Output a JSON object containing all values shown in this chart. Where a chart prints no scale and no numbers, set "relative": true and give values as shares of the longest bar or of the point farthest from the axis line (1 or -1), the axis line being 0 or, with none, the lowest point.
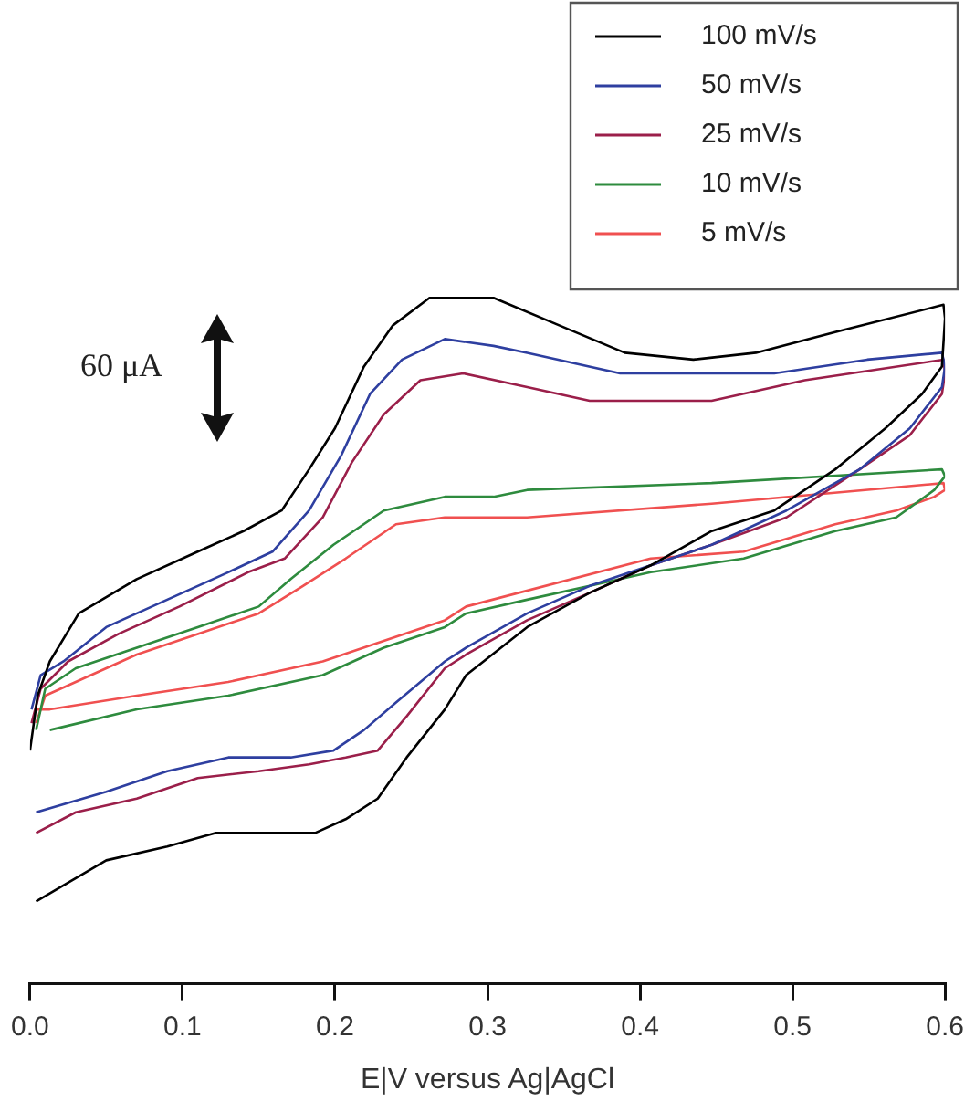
{
  "chart_data": {
    "type": "line",
    "relative": true,
    "xlabel": "E|V versus Ag|AgCl",
    "xlim": [
      0,
      0.6
    ],
    "xticks": [
      {
        "value": 0,
        "label": "0.0"
      },
      {
        "value": 0.1,
        "label": "0.1"
      },
      {
        "value": 0.2,
        "label": "0.2"
      },
      {
        "value": 0.3,
        "label": "0.3"
      },
      {
        "value": 0.4,
        "label": "0.4"
      },
      {
        "value": 0.5,
        "label": "0.5"
      },
      {
        "value": 0.6,
        "label": "0.6"
      }
    ],
    "tick_labels": "x",
    "grid": false,
    "legend": "top right",
    "marker": "none",
    "line_style": "solid",
    "annotations": [
      "60 μA"
    ],
    "series": [
      {
        "name": "100 mV/s",
        "color": "#000000",
        "x": [
          0,
          0.005,
          0.013,
          0.032,
          0.07,
          0.11,
          0.14,
          0.165,
          0.183,
          0.2,
          0.219,
          0.238,
          0.262,
          0.284,
          0.304,
          0.347,
          0.39,
          0.435,
          0.476,
          0.528,
          0.599,
          0.6,
          0.598,
          0.585,
          0.561,
          0.528,
          0.488,
          0.447,
          0.407,
          0.367,
          0.326,
          0.286,
          0.272,
          0.247,
          0.228,
          0.207,
          0.187,
          0.167,
          0.143,
          0.122,
          0.09,
          0.05,
          0.004
        ],
        "values": [
          0.34,
          0.42,
          0.47,
          0.54,
          0.59,
          0.63,
          0.66,
          0.69,
          0.75,
          0.81,
          0.9,
          0.96,
          1.0,
          1,
          1.0,
          0.96,
          0.92,
          0.91,
          0.92,
          0.95,
          0.99,
          0.97,
          0.9,
          0.86,
          0.81,
          0.75,
          0.69,
          0.66,
          0.61,
          0.57,
          0.52,
          0.45,
          0.4,
          0.33,
          0.27,
          0.24,
          0.22,
          0.22,
          0.22,
          0.22,
          0.2,
          0.18,
          0.12
        ]
      },
      {
        "name": "50 mV/s",
        "color": "#2e3fa0",
        "x": [
          0.001,
          0.007,
          0.022,
          0.05,
          0.09,
          0.13,
          0.159,
          0.183,
          0.204,
          0.223,
          0.244,
          0.272,
          0.304,
          0.326,
          0.387,
          0.435,
          0.488,
          0.549,
          0.598,
          0.6,
          0.598,
          0.577,
          0.544,
          0.496,
          0.447,
          0.407,
          0.367,
          0.326,
          0.286,
          0.272,
          0.24,
          0.219,
          0.199,
          0.171,
          0.13,
          0.09,
          0.05,
          0.004
        ],
        "values": [
          0.4,
          0.45,
          0.47,
          0.52,
          0.56,
          0.6,
          0.63,
          0.69,
          0.77,
          0.86,
          0.91,
          0.94,
          0.93,
          0.92,
          0.89,
          0.89,
          0.89,
          0.91,
          0.92,
          0.9,
          0.87,
          0.81,
          0.75,
          0.69,
          0.64,
          0.61,
          0.58,
          0.54,
          0.49,
          0.47,
          0.41,
          0.37,
          0.34,
          0.33,
          0.33,
          0.31,
          0.28,
          0.25
        ]
      },
      {
        "name": "25 mV/s",
        "color": "#9b1f4a",
        "x": [
          0.001,
          0.007,
          0.025,
          0.058,
          0.098,
          0.143,
          0.167,
          0.192,
          0.211,
          0.232,
          0.256,
          0.284,
          0.326,
          0.367,
          0.407,
          0.447,
          0.508,
          0.599,
          0.6,
          0.598,
          0.577,
          0.544,
          0.496,
          0.447,
          0.407,
          0.367,
          0.326,
          0.286,
          0.272,
          0.247,
          0.228,
          0.207,
          0.183,
          0.15,
          0.11,
          0.07,
          0.03,
          0.004
        ],
        "values": [
          0.38,
          0.43,
          0.47,
          0.51,
          0.55,
          0.6,
          0.62,
          0.68,
          0.76,
          0.83,
          0.88,
          0.89,
          0.87,
          0.85,
          0.85,
          0.85,
          0.88,
          0.91,
          0.89,
          0.86,
          0.8,
          0.75,
          0.68,
          0.64,
          0.61,
          0.57,
          0.53,
          0.48,
          0.46,
          0.39,
          0.34,
          0.33,
          0.32,
          0.31,
          0.3,
          0.27,
          0.25,
          0.22
        ]
      },
      {
        "name": "10 mV/s",
        "color": "#2e8b3e",
        "x": [
          0.004,
          0.01,
          0.03,
          0.07,
          0.11,
          0.15,
          0.171,
          0.199,
          0.232,
          0.272,
          0.304,
          0.326,
          0.447,
          0.598,
          0.6,
          0.593,
          0.568,
          0.528,
          0.468,
          0.407,
          0.367,
          0.326,
          0.286,
          0.272,
          0.232,
          0.192,
          0.13,
          0.07,
          0.013
        ],
        "values": [
          0.37,
          0.43,
          0.46,
          0.49,
          0.52,
          0.55,
          0.59,
          0.64,
          0.69,
          0.71,
          0.71,
          0.72,
          0.73,
          0.75,
          0.74,
          0.72,
          0.68,
          0.66,
          0.62,
          0.6,
          0.58,
          0.56,
          0.54,
          0.52,
          0.49,
          0.45,
          0.42,
          0.4,
          0.37
        ]
      },
      {
        "name": "5 mV/s",
        "color": "#f05050",
        "x": [
          0.004,
          0.01,
          0.03,
          0.07,
          0.11,
          0.15,
          0.179,
          0.207,
          0.24,
          0.272,
          0.304,
          0.326,
          0.447,
          0.599,
          0.6,
          0.593,
          0.568,
          0.528,
          0.468,
          0.407,
          0.286,
          0.272,
          0.232,
          0.192,
          0.13,
          0.07,
          0.013,
          0.004
        ],
        "values": [
          0.38,
          0.42,
          0.44,
          0.48,
          0.51,
          0.54,
          0.58,
          0.62,
          0.67,
          0.68,
          0.68,
          0.68,
          0.7,
          0.73,
          0.72,
          0.71,
          0.69,
          0.67,
          0.63,
          0.62,
          0.55,
          0.53,
          0.5,
          0.47,
          0.44,
          0.42,
          0.4,
          0.4
        ]
      }
    ]
  }
}
